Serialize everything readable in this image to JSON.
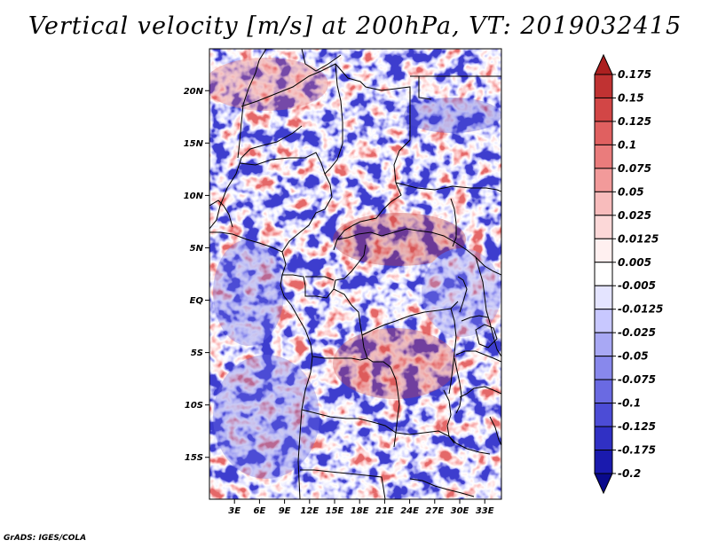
{
  "title": "Vertical velocity [m/s] at 200hPa, VT: 2019032415",
  "credit": "GrADS: IGES/COLA",
  "map": {
    "lat_ticks": [
      "20N",
      "15N",
      "10N",
      "5N",
      "EQ",
      "5S",
      "10S",
      "15S"
    ],
    "lon_ticks": [
      "3E",
      "6E",
      "9E",
      "12E",
      "15E",
      "18E",
      "21E",
      "24E",
      "27E",
      "30E",
      "33E"
    ],
    "lat_range": [
      -19,
      24
    ],
    "lon_range": [
      0,
      35
    ]
  },
  "colorbar": {
    "labels": [
      "0.175",
      "0.15",
      "0.125",
      "0.1",
      "0.075",
      "0.05",
      "0.025",
      "0.0125",
      "0.005",
      "-0.005",
      "-0.0125",
      "-0.025",
      "-0.05",
      "-0.075",
      "-0.1",
      "-0.125",
      "-0.175",
      "-0.2"
    ],
    "colors": [
      "#ac2020",
      "#c03232",
      "#d24646",
      "#e06060",
      "#ea7c7c",
      "#f29a9a",
      "#f8bcbc",
      "#fcd8d8",
      "#fff0f0",
      "#ffffff",
      "#e4e4ff",
      "#c8c8ff",
      "#a8a8f4",
      "#8888ec",
      "#6a6ae2",
      "#4c4cd6",
      "#3030c4",
      "#1a1aae",
      "#0a0a8c"
    ]
  }
}
